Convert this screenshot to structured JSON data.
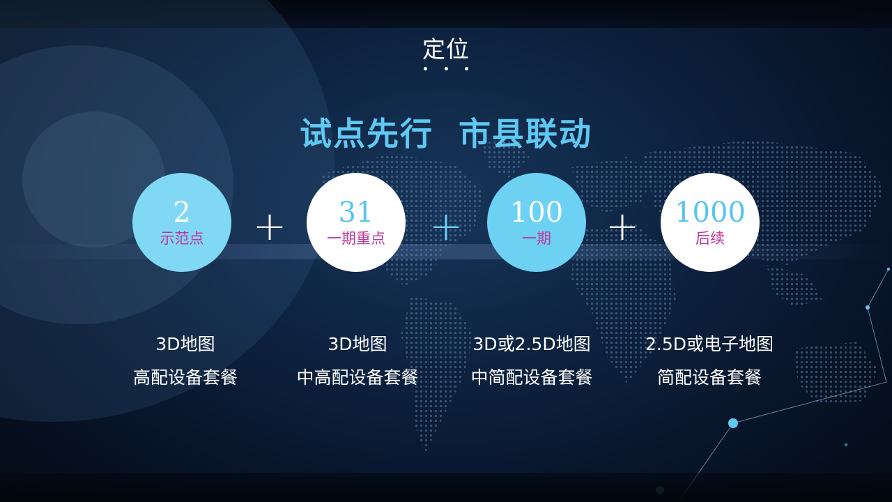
{
  "section_label": "定位",
  "headline": "试点先行  市县联动",
  "tiers": [
    {
      "number": "2",
      "caption": "示范点",
      "desc_line1": "3D地图",
      "desc_line2": "高配设备套餐"
    },
    {
      "number": "31",
      "caption": "一期重点",
      "desc_line1": "3D地图",
      "desc_line2": "中高配设备套餐"
    },
    {
      "number": "100",
      "caption": "一期",
      "desc_line1": "3D或2.5D地图",
      "desc_line2": "中简配设备套餐"
    },
    {
      "number": "1000",
      "caption": "后续",
      "desc_line1": "2.5D或电子地图",
      "desc_line2": "简配设备套餐"
    }
  ],
  "operator": "+",
  "colors": {
    "accent_cyan": "#6dd1f3",
    "headline_blue": "#5fc9f2",
    "caption_magenta": "#c0369a",
    "background_navy": "#0d2240"
  }
}
